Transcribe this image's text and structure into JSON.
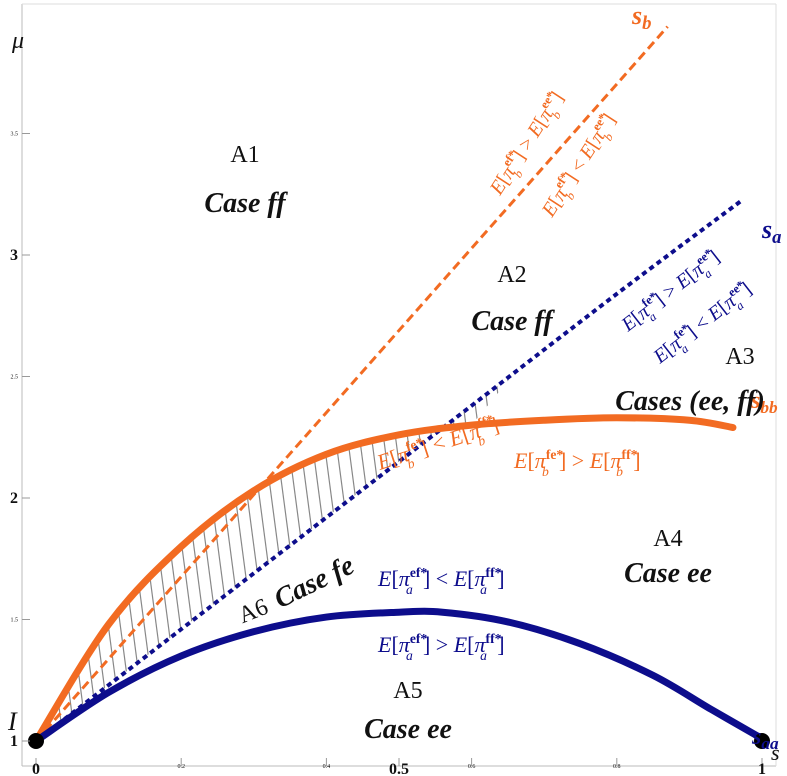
{
  "chart_data": {
    "type": "line",
    "x_axis_label": "s",
    "y_axis_label": "μ",
    "xlim": [
      0,
      1
    ],
    "ylim": [
      1,
      3.95
    ],
    "x_ticks": [
      {
        "value": 0,
        "label": "0",
        "big": true
      },
      {
        "value": 0.2,
        "label": "0.2",
        "big": false
      },
      {
        "value": 0.4,
        "label": "0.4",
        "big": false
      },
      {
        "value": 0.5,
        "label": "0.5",
        "big": true
      },
      {
        "value": 0.6,
        "label": "0.6",
        "big": false
      },
      {
        "value": 0.8,
        "label": "0.8",
        "big": false
      },
      {
        "value": 1,
        "label": "1",
        "big": true
      }
    ],
    "y_ticks": [
      {
        "value": 1,
        "label": "1",
        "big": true
      },
      {
        "value": 1.5,
        "label": "1.5",
        "big": false
      },
      {
        "value": 2,
        "label": "2",
        "big": true
      },
      {
        "value": 2.5,
        "label": "2.5",
        "big": false
      },
      {
        "value": 3,
        "label": "3",
        "big": true
      },
      {
        "value": 3.5,
        "label": "3.5",
        "big": false
      }
    ],
    "series": [
      {
        "name": "s_b",
        "style": "dashed",
        "color": "#f26b22",
        "points": [
          [
            0,
            1
          ],
          [
            0.87,
            3.94
          ]
        ]
      },
      {
        "name": "s_a",
        "style": "dotted",
        "color": "#0d0d8c",
        "points": [
          [
            0,
            1
          ],
          [
            0.2,
            1.46
          ],
          [
            0.4,
            1.92
          ],
          [
            0.6,
            2.38
          ],
          [
            0.8,
            2.84
          ],
          [
            0.97,
            3.22
          ]
        ]
      },
      {
        "name": "s_bb",
        "style": "solid",
        "color": "#f26b22",
        "points": [
          [
            0,
            1
          ],
          [
            0.1,
            1.48
          ],
          [
            0.2,
            1.8
          ],
          [
            0.3,
            2.03
          ],
          [
            0.4,
            2.18
          ],
          [
            0.5,
            2.26
          ],
          [
            0.6,
            2.3
          ],
          [
            0.7,
            2.32
          ],
          [
            0.8,
            2.33
          ],
          [
            0.9,
            2.32
          ],
          [
            0.96,
            2.29
          ]
        ]
      },
      {
        "name": "s_aa",
        "style": "solid",
        "color": "#0d0d8c",
        "points": [
          [
            0,
            1
          ],
          [
            0.1,
            1.2
          ],
          [
            0.2,
            1.35
          ],
          [
            0.3,
            1.45
          ],
          [
            0.4,
            1.51
          ],
          [
            0.5,
            1.53
          ],
          [
            0.56,
            1.53
          ],
          [
            0.65,
            1.49
          ],
          [
            0.75,
            1.4
          ],
          [
            0.85,
            1.27
          ],
          [
            0.93,
            1.13
          ],
          [
            1,
            1.01
          ]
        ]
      }
    ],
    "points": [
      {
        "label": "I",
        "x": 0,
        "y": 1
      },
      {
        "label": "",
        "x": 1,
        "y": 1
      }
    ],
    "curve_labels": {
      "s_b": {
        "main": "s",
        "sub": "b"
      },
      "s_a": {
        "main": "s",
        "sub": "a"
      },
      "s_bb": {
        "main": "s",
        "sub": "bb"
      },
      "s_aa": {
        "main": "s",
        "sub": "aa"
      }
    },
    "regions": {
      "A1": {
        "name": "A1",
        "case": "Case ff"
      },
      "A2": {
        "name": "A2",
        "case": "Case ff"
      },
      "A3": {
        "name": "A3",
        "case": "Cases (ee, ff)"
      },
      "A4": {
        "name": "A4",
        "case": "Case ee"
      },
      "A5": {
        "name": "A5",
        "case": "Case ee"
      },
      "A6": {
        "name": "A6",
        "case": "Case fe"
      }
    },
    "annotations": {
      "sb_upper": "E[π_b^{ef*}] > E[π_b^{ee*}]",
      "sb_lower": "E[π_b^{ef*}] < E[π_b^{ee*}]",
      "sa_upper": "E[π_a^{fe*}] > E[π_a^{ee*}]",
      "sa_lower": "E[π_a^{fe*}] < E[π_a^{ee*}]",
      "sbb_upper": "E[π_b^{fe*}] < E[π_b^{ff*}]",
      "sbb_lower": "E[π_b^{fe*}] > E[π_b^{ff*}]",
      "saa_upper": "E[π_a^{ef*}] < E[π_a^{ff*}]",
      "saa_lower": "E[π_a^{ef*}] > E[π_a^{ff*}]"
    },
    "annotation_parts": {
      "E": "E",
      "pi": "π",
      "sub_b": "b",
      "sub_a": "a",
      "sup_ef": "ef*",
      "sup_ee": "ee*",
      "sup_fe": "fe*",
      "sup_ff": "ff*",
      "gt": ">",
      "lt": "<"
    },
    "colors": {
      "orange": "#f26b22",
      "blue": "#0d0d8c",
      "hatch": "#888888"
    },
    "grid": false,
    "legend": "none"
  }
}
